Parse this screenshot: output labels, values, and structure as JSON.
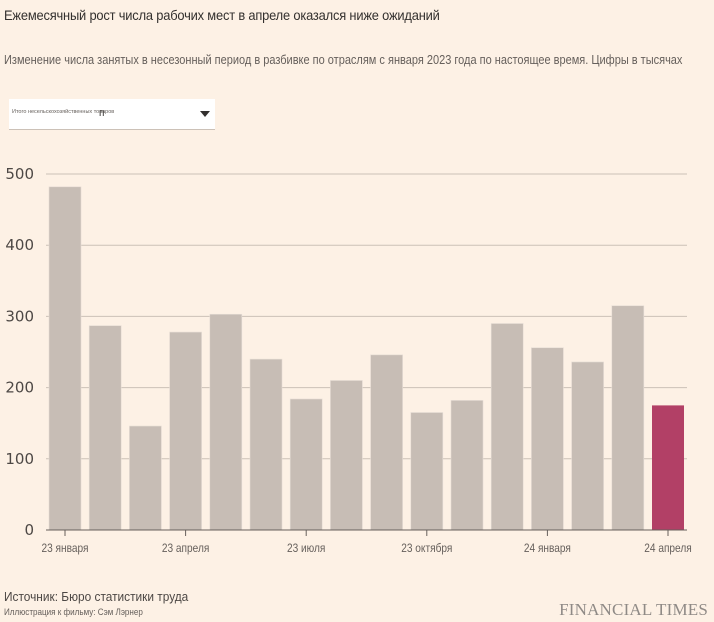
{
  "header": {
    "title": "Ежемесячный рост числа рабочих мест в апреле оказался ниже ожиданий",
    "subtitle": "Изменение числа занятых в несезонный период в разбивке по отраслям с января 2023 года по настоящее время. Цифры в тысячах"
  },
  "dropdown": {
    "label": "Итого несельскохозяйственных товаров",
    "value": "п",
    "icon": "triangle-down-icon"
  },
  "footer": {
    "source": "Источник: Бюро статистики труда",
    "credit": "Иллюстрация к фильму: Сэм Лэрнер",
    "brand": "FINANCIAL TIMES"
  },
  "colors": {
    "background": "#fdf1e5",
    "bar": "#c7bdb5",
    "highlight": "#b24066",
    "grid": "#ccc1b7",
    "axis": "#66605c"
  },
  "chart_data": {
    "type": "bar",
    "title": "Ежемесячный рост числа рабочих мест в апреле оказался ниже ожиданий",
    "xlabel": "",
    "ylabel": "",
    "ylim": [
      0,
      500
    ],
    "grid": true,
    "yticks": [
      0,
      100,
      200,
      300,
      400,
      500
    ],
    "categories": [
      "янв 2023",
      "фев 2023",
      "мар 2023",
      "апр 2023",
      "май 2023",
      "июн 2023",
      "июл 2023",
      "авг 2023",
      "сен 2023",
      "окт 2023",
      "ноя 2023",
      "дек 2023",
      "янв 2024",
      "фев 2024",
      "мар 2024",
      "апр 2024"
    ],
    "values": [
      482,
      287,
      146,
      278,
      303,
      240,
      184,
      210,
      246,
      165,
      182,
      290,
      256,
      236,
      315,
      175
    ],
    "highlight_index": 15,
    "xtick_labels": [
      {
        "index": 0,
        "label": "23 января"
      },
      {
        "index": 3,
        "label": "23 апреля"
      },
      {
        "index": 6,
        "label": "23 июля"
      },
      {
        "index": 9,
        "label": "23 октября"
      },
      {
        "index": 12,
        "label": "24 января"
      },
      {
        "index": 15,
        "label": "24 апреля"
      }
    ]
  }
}
